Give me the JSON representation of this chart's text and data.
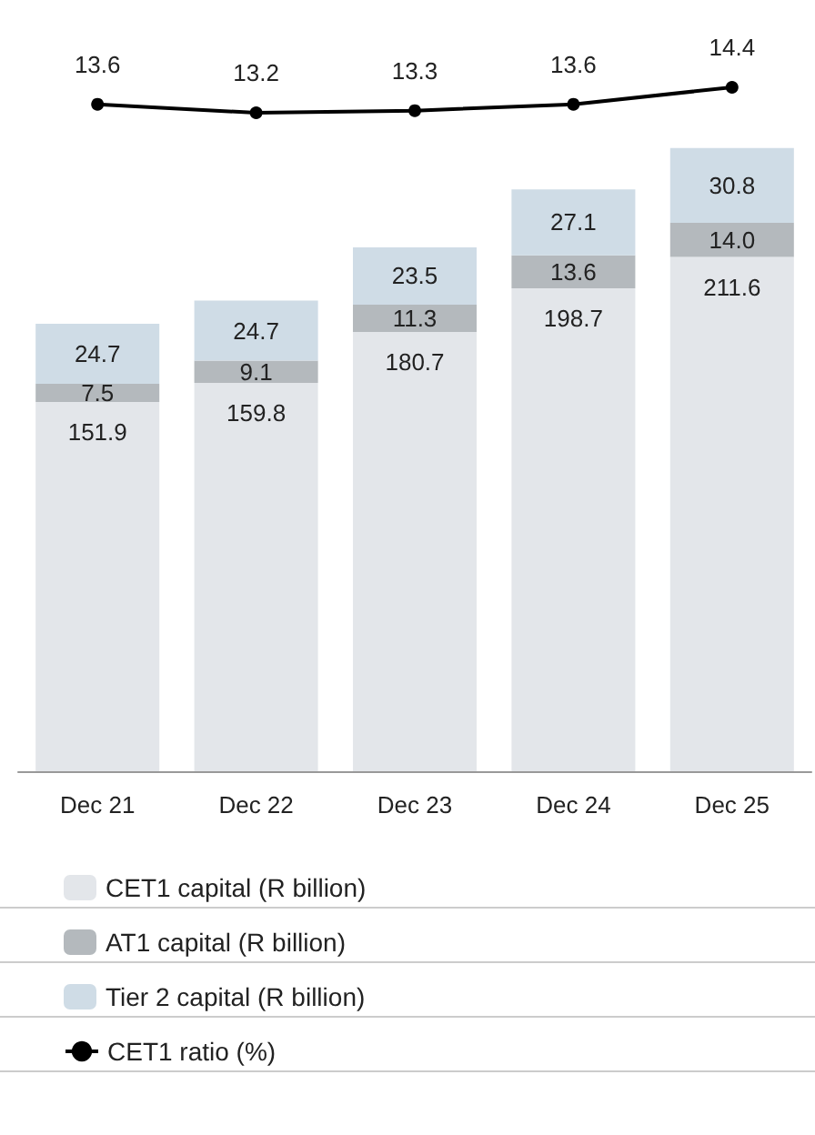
{
  "chart_data": [
    {
      "type": "line",
      "categories": [
        null,
        null,
        null,
        null,
        null
      ],
      "series": [
        {
          "name": "CET1 ratio (%)",
          "color": "#000000",
          "values": [
            13.6,
            13.2,
            13.3,
            13.6,
            14.4
          ]
        }
      ],
      "data_labels": true,
      "marker": "circle",
      "legend": "bottom",
      "grid": false,
      "tick_labels": false
    },
    {
      "type": "bar",
      "stacked": true,
      "categories": [
        "Dec 21",
        "Dec 22",
        "Dec 23",
        "Dec 24",
        "Dec 25"
      ],
      "series": [
        {
          "name": "CET1 capital (R billion)",
          "color": "#e3e6ea",
          "values": [
            151.9,
            159.8,
            180.7,
            198.7,
            211.6
          ],
          "value_labels": [
            "151.9",
            "159.8",
            "180.7",
            "198.7",
            "211.6"
          ]
        },
        {
          "name": "AT1 capital (R billion)",
          "color": "#b4b9bd",
          "values": [
            7.5,
            9.1,
            11.3,
            13.6,
            14.0
          ],
          "value_labels": [
            "7.5",
            "9.1",
            "11.3",
            "13.6",
            "14.0"
          ]
        },
        {
          "name": "Tier 2 capital (R billion)",
          "color": "#cfdce6",
          "values": [
            24.7,
            24.7,
            23.5,
            27.1,
            30.8
          ],
          "value_labels": [
            "24.7",
            "24.7",
            "23.5",
            "27.1",
            "30.8"
          ]
        }
      ],
      "legend": "bottom",
      "grid": false,
      "tick_labels": "x"
    }
  ]
}
